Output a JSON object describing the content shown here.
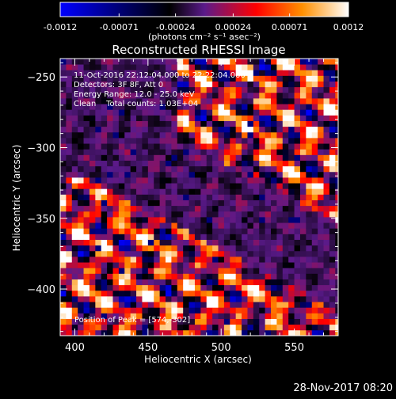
{
  "chart_data": {
    "type": "heatmap",
    "title": "Reconstructed RHESSI Image",
    "xlabel": "Heliocentric X (arcsec)",
    "ylabel": "Heliocentric Y (arcsec)",
    "xlim": [
      390,
      580
    ],
    "ylim": [
      -433,
      -237
    ],
    "x_ticks": [
      "400",
      "450",
      "500",
      "550"
    ],
    "x_tick_values": [
      400,
      450,
      500,
      550
    ],
    "y_ticks": [
      "-250",
      "-300",
      "-350",
      "-400"
    ],
    "y_tick_values": [
      -250,
      -300,
      -350,
      -400
    ],
    "colorbar": {
      "range": [
        -0.0012,
        0.0012
      ],
      "tick_labels": [
        "-0.0012",
        "-0.00071",
        "-0.00024",
        "0.00024",
        "0.00071",
        "0.0012"
      ],
      "tick_values": [
        -0.0012,
        -0.00071,
        -0.00024,
        0.00024,
        0.00071,
        0.0012
      ],
      "units": "(photons cm⁻² s⁻¹ asec⁻²)",
      "colormap": [
        "#0000ff",
        "#000000",
        "#5a1a8a",
        "#ff0000",
        "#ff9000",
        "#ffffff"
      ]
    },
    "grid": false,
    "pixel_size_arcsec": 4,
    "peak_position": [
      574,
      -302
    ],
    "annotations": [
      "11-Oct-2016 22:12:04.000 to 22:22:04.000",
      "Detectors: 3F 8F, Att 0",
      "Energy Range: 12.0 - 25.0 keV",
      "Clean    Total counts: 1.03E+04",
      "Position of Peak = [574,-302]"
    ]
  },
  "footer": {
    "timestamp": "28-Nov-2017 08:20"
  }
}
